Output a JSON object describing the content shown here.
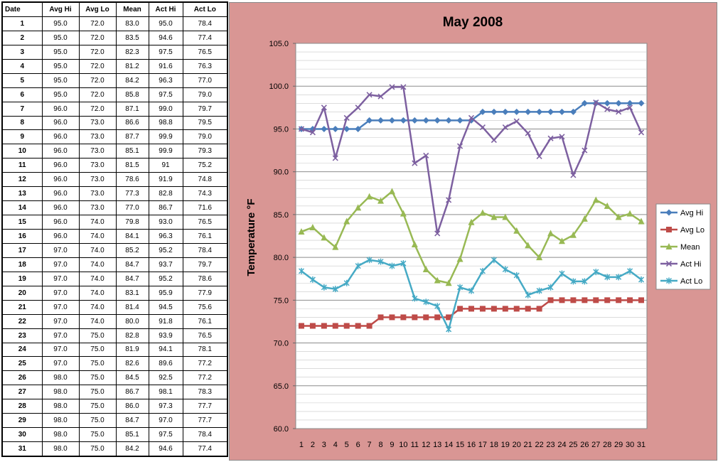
{
  "table": {
    "headers": [
      "Date",
      "Avg Hi",
      "Avg Lo",
      "Mean",
      "Act Hi",
      "Act Lo"
    ],
    "rows": [
      [
        "1",
        "95.0",
        "72.0",
        "83.0",
        "95.0",
        "78.4"
      ],
      [
        "2",
        "95.0",
        "72.0",
        "83.5",
        "94.6",
        "77.4"
      ],
      [
        "3",
        "95.0",
        "72.0",
        "82.3",
        "97.5",
        "76.5"
      ],
      [
        "4",
        "95.0",
        "72.0",
        "81.2",
        "91.6",
        "76.3"
      ],
      [
        "5",
        "95.0",
        "72.0",
        "84.2",
        "96.3",
        "77.0"
      ],
      [
        "6",
        "95.0",
        "72.0",
        "85.8",
        "97.5",
        "79.0"
      ],
      [
        "7",
        "96.0",
        "72.0",
        "87.1",
        "99.0",
        "79.7"
      ],
      [
        "8",
        "96.0",
        "73.0",
        "86.6",
        "98.8",
        "79.5"
      ],
      [
        "9",
        "96.0",
        "73.0",
        "87.7",
        "99.9",
        "79.0"
      ],
      [
        "10",
        "96.0",
        "73.0",
        "85.1",
        "99.9",
        "79.3"
      ],
      [
        "11",
        "96.0",
        "73.0",
        "81.5",
        "91",
        "75.2"
      ],
      [
        "12",
        "96.0",
        "73.0",
        "78.6",
        "91.9",
        "74.8"
      ],
      [
        "13",
        "96.0",
        "73.0",
        "77.3",
        "82.8",
        "74.3"
      ],
      [
        "14",
        "96.0",
        "73.0",
        "77.0",
        "86.7",
        "71.6"
      ],
      [
        "15",
        "96.0",
        "74.0",
        "79.8",
        "93.0",
        "76.5"
      ],
      [
        "16",
        "96.0",
        "74.0",
        "84.1",
        "96.3",
        "76.1"
      ],
      [
        "17",
        "97.0",
        "74.0",
        "85.2",
        "95.2",
        "78.4"
      ],
      [
        "18",
        "97.0",
        "74.0",
        "84.7",
        "93.7",
        "79.7"
      ],
      [
        "19",
        "97.0",
        "74.0",
        "84.7",
        "95.2",
        "78.6"
      ],
      [
        "20",
        "97.0",
        "74.0",
        "83.1",
        "95.9",
        "77.9"
      ],
      [
        "21",
        "97.0",
        "74.0",
        "81.4",
        "94.5",
        "75.6"
      ],
      [
        "22",
        "97.0",
        "74.0",
        "80.0",
        "91.8",
        "76.1"
      ],
      [
        "23",
        "97.0",
        "75.0",
        "82.8",
        "93.9",
        "76.5"
      ],
      [
        "24",
        "97.0",
        "75.0",
        "81.9",
        "94.1",
        "78.1"
      ],
      [
        "25",
        "97.0",
        "75.0",
        "82.6",
        "89.6",
        "77.2"
      ],
      [
        "26",
        "98.0",
        "75.0",
        "84.5",
        "92.5",
        "77.2"
      ],
      [
        "27",
        "98.0",
        "75.0",
        "86.7",
        "98.1",
        "78.3"
      ],
      [
        "28",
        "98.0",
        "75.0",
        "86.0",
        "97.3",
        "77.7"
      ],
      [
        "29",
        "98.0",
        "75.0",
        "84.7",
        "97.0",
        "77.7"
      ],
      [
        "30",
        "98.0",
        "75.0",
        "85.1",
        "97.5",
        "78.4"
      ],
      [
        "31",
        "98.0",
        "75.0",
        "84.2",
        "94.6",
        "77.4"
      ]
    ]
  },
  "chart_data": {
    "type": "line",
    "title": "May 2008",
    "ylabel": "Temperature °F",
    "xlabel": "",
    "x": [
      1,
      2,
      3,
      4,
      5,
      6,
      7,
      8,
      9,
      10,
      11,
      12,
      13,
      14,
      15,
      16,
      17,
      18,
      19,
      20,
      21,
      22,
      23,
      24,
      25,
      26,
      27,
      28,
      29,
      30,
      31
    ],
    "ylim": [
      60,
      105
    ],
    "yticks": [
      "60.0",
      "65.0",
      "70.0",
      "75.0",
      "80.0",
      "85.0",
      "90.0",
      "95.0",
      "100.0",
      "105.0"
    ],
    "grid": true,
    "legend_position": "right",
    "series": [
      {
        "name": "Avg Hi",
        "color": "#4a7ebb",
        "marker": "diamond",
        "values": [
          95.0,
          95.0,
          95.0,
          95.0,
          95.0,
          95.0,
          96.0,
          96.0,
          96.0,
          96.0,
          96.0,
          96.0,
          96.0,
          96.0,
          96.0,
          96.0,
          97.0,
          97.0,
          97.0,
          97.0,
          97.0,
          97.0,
          97.0,
          97.0,
          97.0,
          98.0,
          98.0,
          98.0,
          98.0,
          98.0,
          98.0
        ]
      },
      {
        "name": "Avg Lo",
        "color": "#be4b48",
        "marker": "square",
        "values": [
          72.0,
          72.0,
          72.0,
          72.0,
          72.0,
          72.0,
          72.0,
          73.0,
          73.0,
          73.0,
          73.0,
          73.0,
          73.0,
          73.0,
          74.0,
          74.0,
          74.0,
          74.0,
          74.0,
          74.0,
          74.0,
          74.0,
          75.0,
          75.0,
          75.0,
          75.0,
          75.0,
          75.0,
          75.0,
          75.0,
          75.0
        ]
      },
      {
        "name": "Mean",
        "color": "#98b954",
        "marker": "triangle",
        "values": [
          83.0,
          83.5,
          82.3,
          81.2,
          84.2,
          85.8,
          87.1,
          86.6,
          87.7,
          85.1,
          81.5,
          78.6,
          77.3,
          77.0,
          79.8,
          84.1,
          85.2,
          84.7,
          84.7,
          83.1,
          81.4,
          80.0,
          82.8,
          81.9,
          82.6,
          84.5,
          86.7,
          86.0,
          84.7,
          85.1,
          84.2
        ]
      },
      {
        "name": "Act Hi",
        "color": "#7d60a0",
        "marker": "x",
        "values": [
          95.0,
          94.6,
          97.5,
          91.6,
          96.3,
          97.5,
          99.0,
          98.8,
          99.9,
          99.9,
          91,
          91.9,
          82.8,
          86.7,
          93.0,
          96.3,
          95.2,
          93.7,
          95.2,
          95.9,
          94.5,
          91.8,
          93.9,
          94.1,
          89.6,
          92.5,
          98.1,
          97.3,
          97.0,
          97.5,
          94.6
        ]
      },
      {
        "name": "Act Lo",
        "color": "#46aac5",
        "marker": "star",
        "values": [
          78.4,
          77.4,
          76.5,
          76.3,
          77.0,
          79.0,
          79.7,
          79.5,
          79.0,
          79.3,
          75.2,
          74.8,
          74.3,
          71.6,
          76.5,
          76.1,
          78.4,
          79.7,
          78.6,
          77.9,
          75.6,
          76.1,
          76.5,
          78.1,
          77.2,
          77.2,
          78.3,
          77.7,
          77.7,
          78.4,
          77.4
        ]
      }
    ]
  }
}
